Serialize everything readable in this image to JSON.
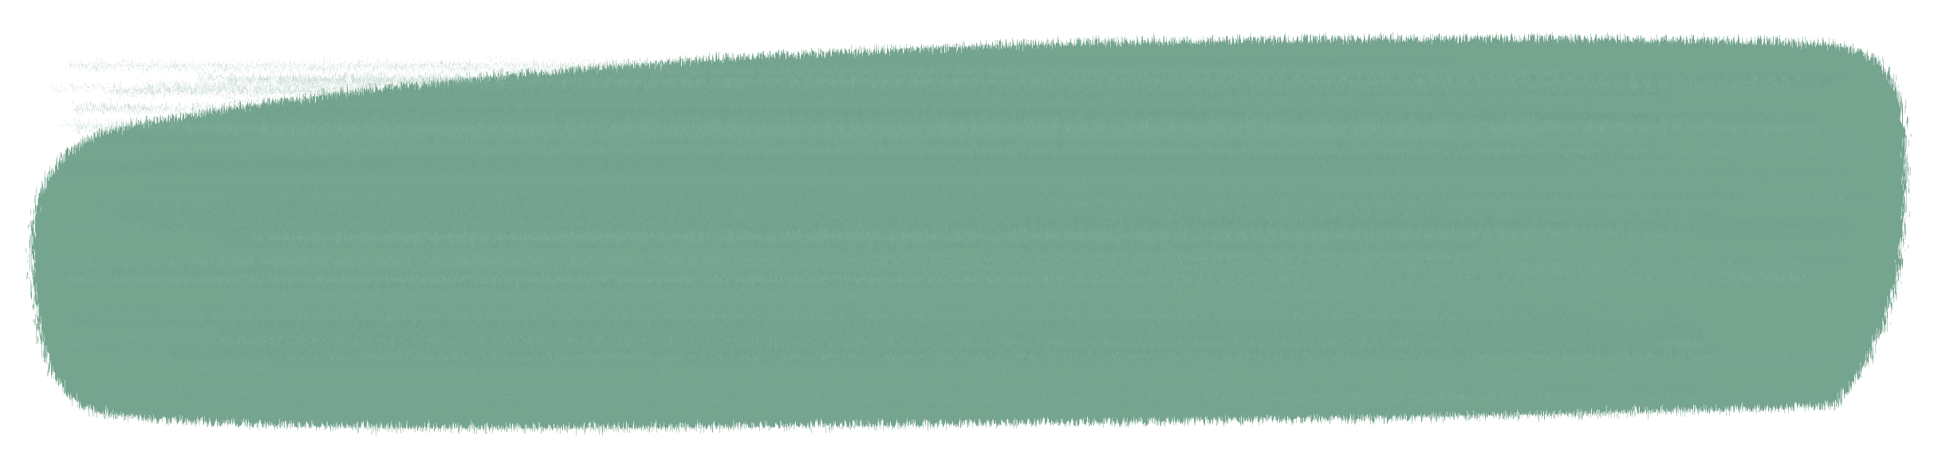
{
  "colors": {
    "background": "#ffffff",
    "stroke": "#74a48f",
    "stroke_light": "#8fb9a6",
    "stroke_dark": "#6a9a85"
  },
  "artwork": {
    "kind": "paint-brush-stroke",
    "texture": "dry-brush-bristles"
  }
}
